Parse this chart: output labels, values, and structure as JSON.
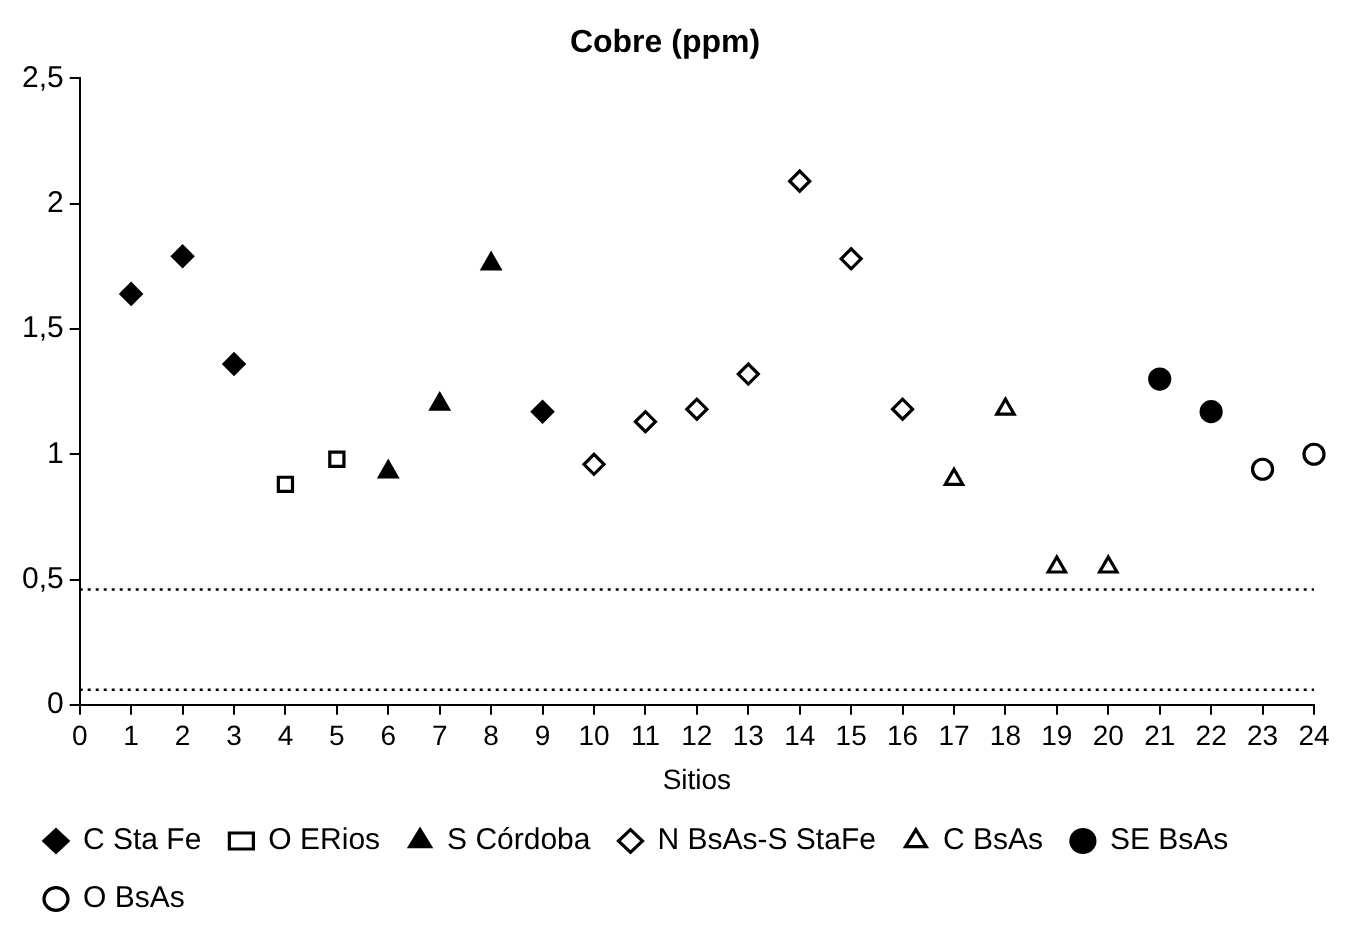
{
  "chart_data": {
    "type": "scatter",
    "title": "Cobre (ppm)",
    "xlabel": "Sitios",
    "xlim": [
      0,
      24
    ],
    "xticks": [
      0,
      1,
      2,
      3,
      4,
      5,
      6,
      7,
      8,
      9,
      10,
      11,
      12,
      13,
      14,
      15,
      16,
      17,
      18,
      19,
      20,
      21,
      22,
      23,
      24
    ],
    "ylim": [
      0,
      2.5
    ],
    "yticks": [
      0,
      {
        "value": 0.5,
        "label": "0,5"
      },
      1,
      {
        "value": 1.5,
        "label": "1,5"
      },
      2,
      {
        "value": 2.5,
        "label": "2,5"
      }
    ],
    "grid": false,
    "legend": "bottom",
    "series": [
      {
        "name": "C Sta Fe",
        "color": "#000000",
        "marker": "diamond",
        "x": [
          1,
          2,
          3,
          9
        ],
        "values": [
          1.64,
          1.79,
          1.36,
          1.17
        ]
      },
      {
        "name": "O ERios",
        "color": "#ffffff",
        "marker": "square",
        "x": [
          4,
          5
        ],
        "values": [
          0.88,
          0.98
        ]
      },
      {
        "name": "S Córdoba",
        "color": "#000000",
        "marker": "triangle",
        "x": [
          6,
          7,
          8
        ],
        "values": [
          0.93,
          1.2,
          1.76
        ]
      },
      {
        "name": "N BsAs-S StaFe",
        "color": "#ffffff",
        "marker": "diamond",
        "x": [
          10,
          11,
          12,
          13,
          14,
          15,
          16
        ],
        "values": [
          0.96,
          1.13,
          1.18,
          1.32,
          2.09,
          1.78,
          1.18
        ]
      },
      {
        "name": "C BsAs",
        "color": "#ffffff",
        "marker": "triangle",
        "x": [
          17,
          18,
          19,
          20
        ],
        "values": [
          0.9,
          1.18,
          0.55,
          0.55
        ]
      },
      {
        "name": "SE BsAs",
        "color": "#000000",
        "marker": "circle",
        "x": [
          21,
          22
        ],
        "values": [
          1.3,
          1.17
        ]
      },
      {
        "name": "O BsAs",
        "color": "#ffffff",
        "marker": "circle",
        "x": [
          23,
          24
        ],
        "values": [
          0.94,
          1.0
        ]
      }
    ],
    "ref_lines": [
      {
        "axis": "y",
        "value": 0.46,
        "color": "#000000",
        "line_style": "dotted"
      },
      {
        "axis": "y",
        "value": 0.06,
        "color": "#000000",
        "line_style": "dotted"
      }
    ]
  }
}
